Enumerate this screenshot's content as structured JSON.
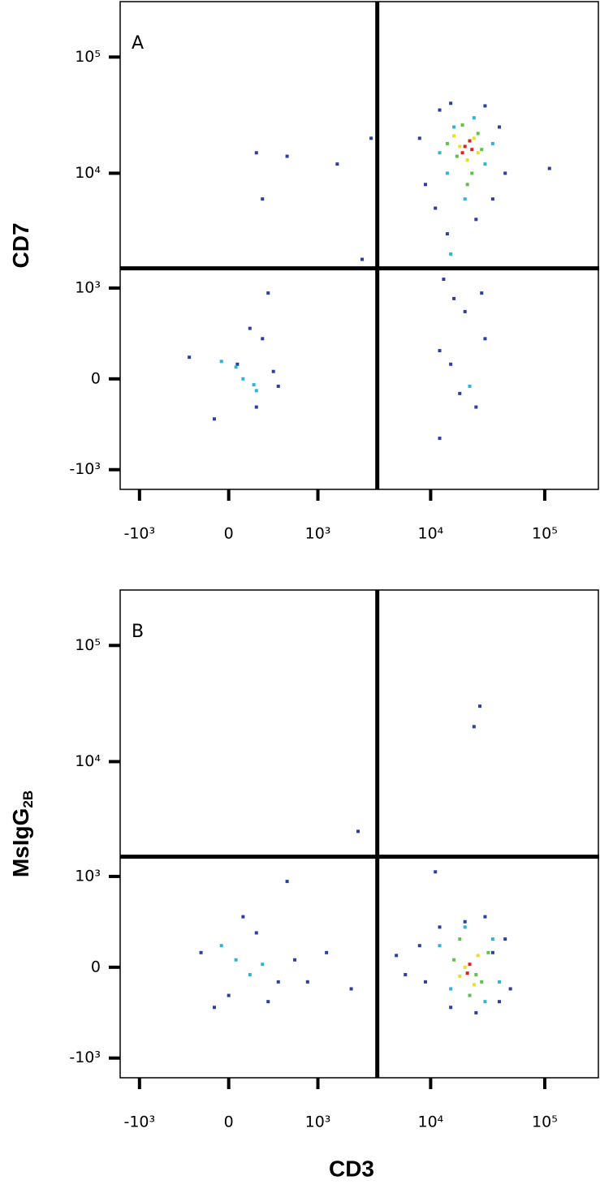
{
  "chart_data": [
    {
      "type": "scatter",
      "panel_label": "A",
      "y_label": "CD7",
      "scale": "biexponential",
      "xlim": [
        -1500,
        300000
      ],
      "ylim": [
        -1500,
        300000
      ],
      "xticks": [
        {
          "value": -1000,
          "label": "-10³"
        },
        0,
        {
          "value": 1000,
          "label": "10³"
        },
        {
          "value": 10000,
          "label": "10⁴"
        },
        {
          "value": 100000,
          "label": "10⁵"
        }
      ],
      "yticks": [
        {
          "value": -1000,
          "label": "-10³"
        },
        0,
        {
          "value": 1000,
          "label": "10³"
        },
        {
          "value": 10000,
          "label": "10⁴"
        },
        {
          "value": 100000,
          "label": "10⁵"
        }
      ],
      "gates": {
        "x": 3400,
        "y": 1500
      },
      "series": [
        {
          "color": "#2b3f9e",
          "x": [
            8000,
            12000,
            15000,
            30000,
            40000,
            45000,
            9000,
            11000,
            14000,
            25000,
            35000,
            13000,
            16000,
            28000,
            20000,
            12000,
            30000,
            18000,
            25000,
            15000,
            60,
            200,
            -300,
            400,
            150,
            -100,
            350,
            250,
            200,
            500,
            1500,
            3000,
            250,
            2500,
            110000,
            300,
            12000,
            38000
          ],
          "y": [
            20000,
            35000,
            40000,
            38000,
            25000,
            10000,
            8000,
            5000,
            3000,
            4000,
            6000,
            1200,
            800,
            900,
            600,
            200,
            300,
            -100,
            -200,
            100,
            100,
            -200,
            150,
            -50,
            400,
            -300,
            50,
            300,
            15000,
            14000,
            12000,
            20000,
            6000,
            1800,
            11000,
            900,
            -500,
            1500
          ]
        },
        {
          "color": "#2cb5d6",
          "x": [
            14000,
            30000,
            16000,
            24000,
            12000,
            35000,
            20000,
            22000,
            15000,
            100,
            50,
            200,
            -50,
            180
          ],
          "y": [
            10000,
            12000,
            25000,
            30000,
            15000,
            18000,
            6000,
            -50,
            2000,
            0,
            80,
            -80,
            120,
            -40
          ]
        },
        {
          "color": "#5cc24a",
          "x": [
            17000,
            26000,
            19000,
            23000,
            14000,
            28000,
            21000
          ],
          "y": [
            14000,
            22000,
            26000,
            10000,
            18000,
            16000,
            8000
          ]
        },
        {
          "color": "#e8e020",
          "x": [
            18000,
            24000,
            21000,
            16000,
            26000
          ],
          "y": [
            17000,
            20000,
            13000,
            21000,
            15000
          ]
        },
        {
          "color": "#e0201b",
          "x": [
            20000,
            22000,
            19000,
            23000
          ],
          "y": [
            17000,
            19000,
            15000,
            16000
          ]
        }
      ]
    },
    {
      "type": "scatter",
      "panel_label": "B",
      "y_label": "MsIgG",
      "y_label_subscript": "2B",
      "x_label": "CD3",
      "scale": "biexponential",
      "xlim": [
        -1500,
        300000
      ],
      "ylim": [
        -1500,
        300000
      ],
      "xticks": [
        {
          "value": -1000,
          "label": "-10³"
        },
        0,
        {
          "value": 1000,
          "label": "10³"
        },
        {
          "value": 10000,
          "label": "10⁴"
        },
        {
          "value": 100000,
          "label": "10⁵"
        }
      ],
      "yticks": [
        {
          "value": -1000,
          "label": "-10³"
        },
        0,
        {
          "value": 1000,
          "label": "10³"
        },
        {
          "value": 10000,
          "label": "10⁴"
        },
        {
          "value": 100000,
          "label": "10⁵"
        }
      ],
      "gates": {
        "x": 3400,
        "y": 1500
      },
      "series": [
        {
          "color": "#2b3f9e",
          "x": [
            -200,
            0,
            200,
            400,
            100,
            -100,
            300,
            600,
            800,
            1200,
            2000,
            5000,
            6000,
            8000,
            9000,
            45000,
            50000,
            12000,
            15000,
            40000,
            30000,
            20000,
            25000,
            35000,
            500,
            2300,
            27000,
            11000,
            24000
          ],
          "y": [
            100,
            -200,
            250,
            -100,
            400,
            -300,
            -250,
            50,
            -100,
            100,
            -150,
            80,
            -50,
            150,
            -100,
            200,
            -150,
            300,
            -300,
            -250,
            400,
            350,
            -350,
            100,
            900,
            2500,
            30000,
            1100,
            20000
          ]
        },
        {
          "color": "#2cb5d6",
          "x": [
            50,
            150,
            -50,
            250,
            12000,
            40000,
            15000,
            35000,
            20000,
            30000
          ],
          "y": [
            50,
            -50,
            150,
            20,
            150,
            -100,
            -150,
            200,
            300,
            -250
          ]
        },
        {
          "color": "#5cc24a",
          "x": [
            16000,
            28000,
            18000,
            32000,
            22000,
            25000
          ],
          "y": [
            50,
            -100,
            200,
            100,
            -200,
            -50
          ]
        },
        {
          "color": "#e8e020",
          "x": [
            20000,
            26000,
            18000,
            24000
          ],
          "y": [
            0,
            80,
            -60,
            -120
          ]
        },
        {
          "color": "#e0201b",
          "x": [
            22000,
            21000
          ],
          "y": [
            20,
            -40
          ]
        }
      ]
    }
  ]
}
